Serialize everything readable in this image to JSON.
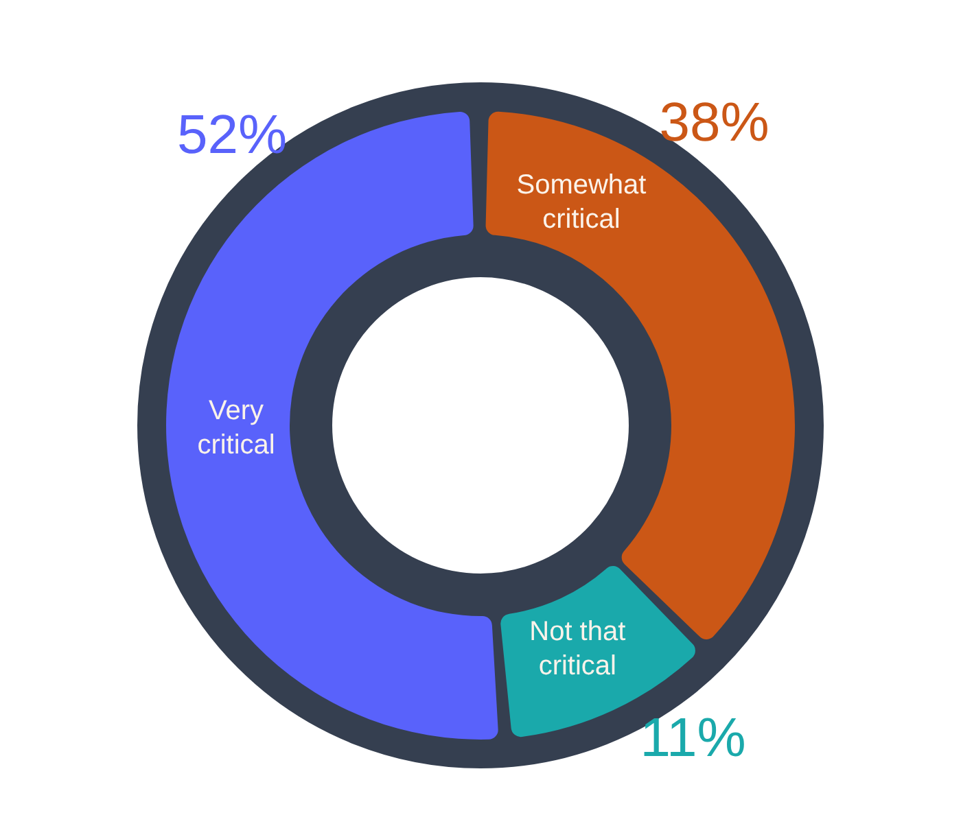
{
  "chart_data": {
    "type": "donut",
    "categories": [
      "Somewhat critical",
      "Not that critical",
      "Very critical"
    ],
    "values": [
      38,
      11,
      52
    ],
    "colors": [
      "#cb5716",
      "#1aa9ab",
      "#5962fb"
    ],
    "value_labels": [
      "38%",
      "11%",
      "52%"
    ],
    "legend": false
  }
}
